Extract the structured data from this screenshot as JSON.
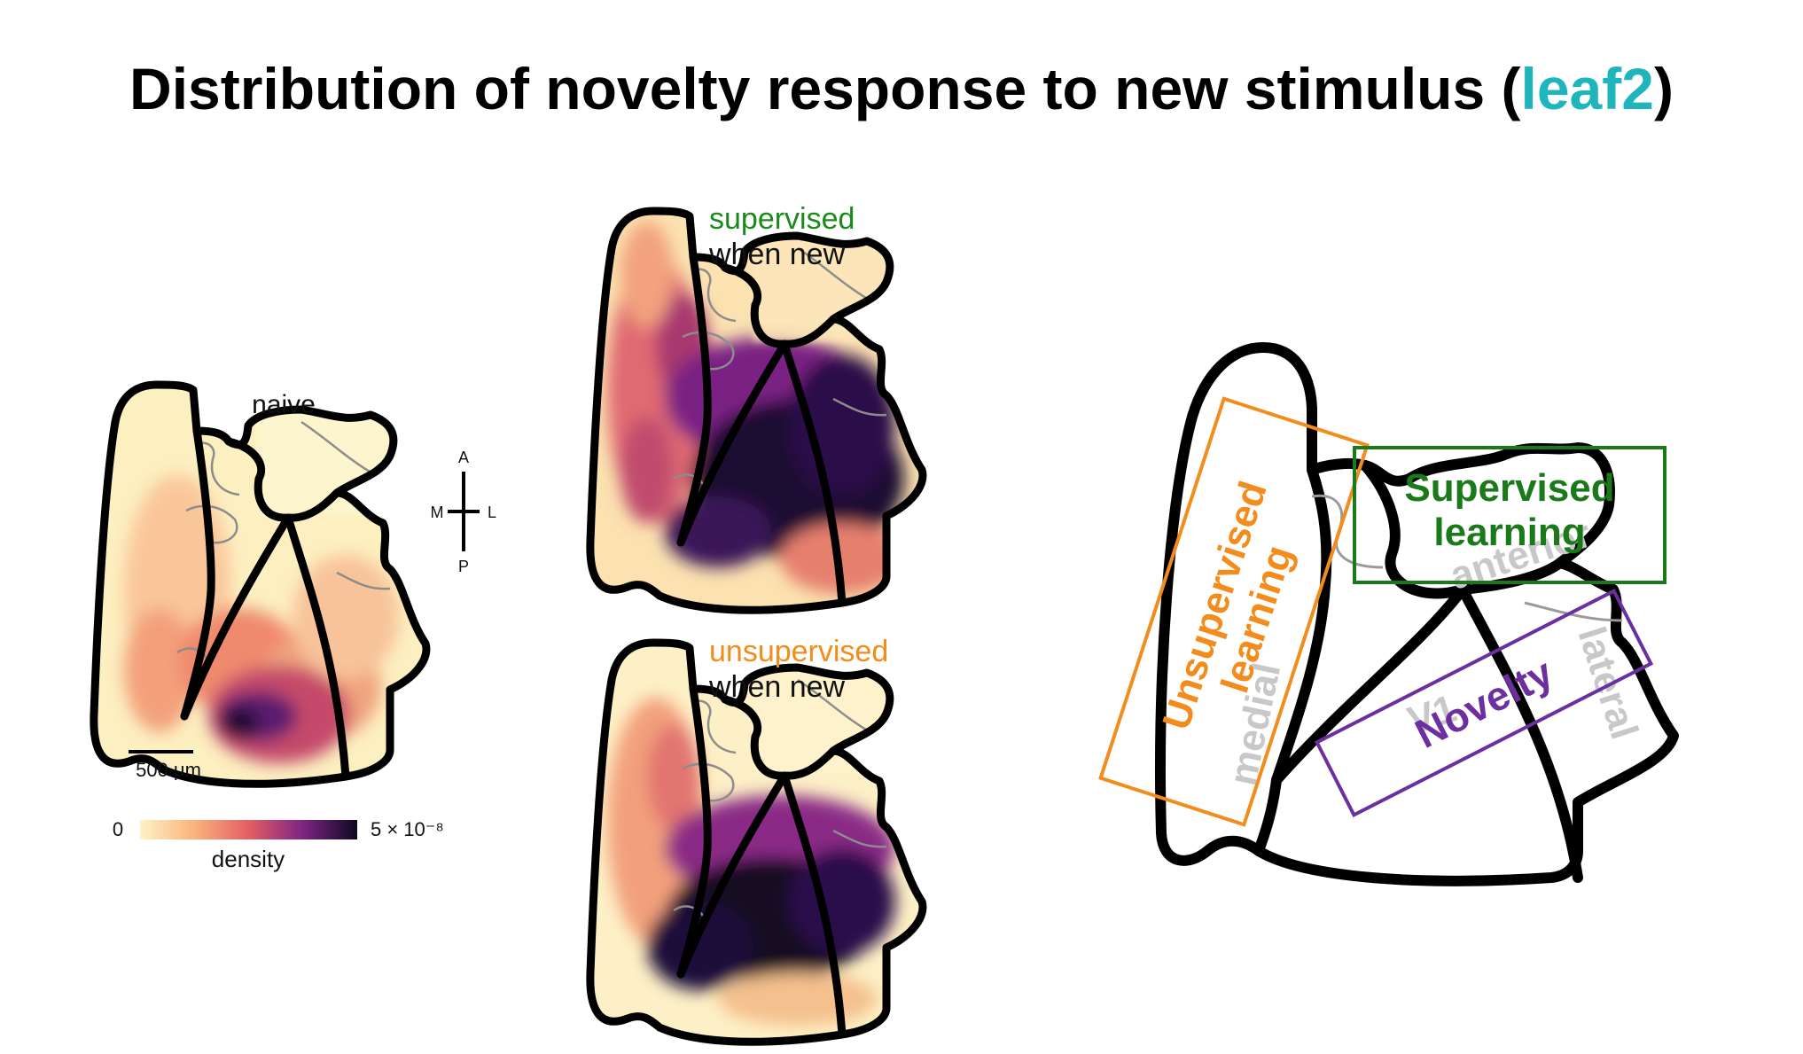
{
  "title": {
    "prefix": "Distribution of novelty response to new stimulus (",
    "accent": "leaf2",
    "suffix": ")",
    "accent_color": "#1fb5bd"
  },
  "panels": {
    "naive": {
      "label": "naive"
    },
    "supervised": {
      "label": "supervised",
      "sublabel": "when new",
      "color": "#1a8a1a"
    },
    "unsupervised": {
      "label": "unsupervised",
      "sublabel": "when new",
      "color": "#f28c1c"
    }
  },
  "compass": {
    "top": "A",
    "left": "M",
    "right": "L",
    "bottom": "P"
  },
  "scalebar": {
    "label": "500 μm"
  },
  "colorbar": {
    "min_label": "0",
    "max_label": "5 × 10⁻⁸",
    "title": "density",
    "colormap": "magma_r"
  },
  "schematic": {
    "areas": [
      "medial",
      "anterior",
      "V1",
      "lateral"
    ],
    "boxes": [
      {
        "label": "Unsupervised learning",
        "color": "#f28c1c"
      },
      {
        "label": "Supervised learning",
        "color": "#1a7a1a"
      },
      {
        "label": "Novelty",
        "color": "#6b2fa0"
      }
    ]
  }
}
